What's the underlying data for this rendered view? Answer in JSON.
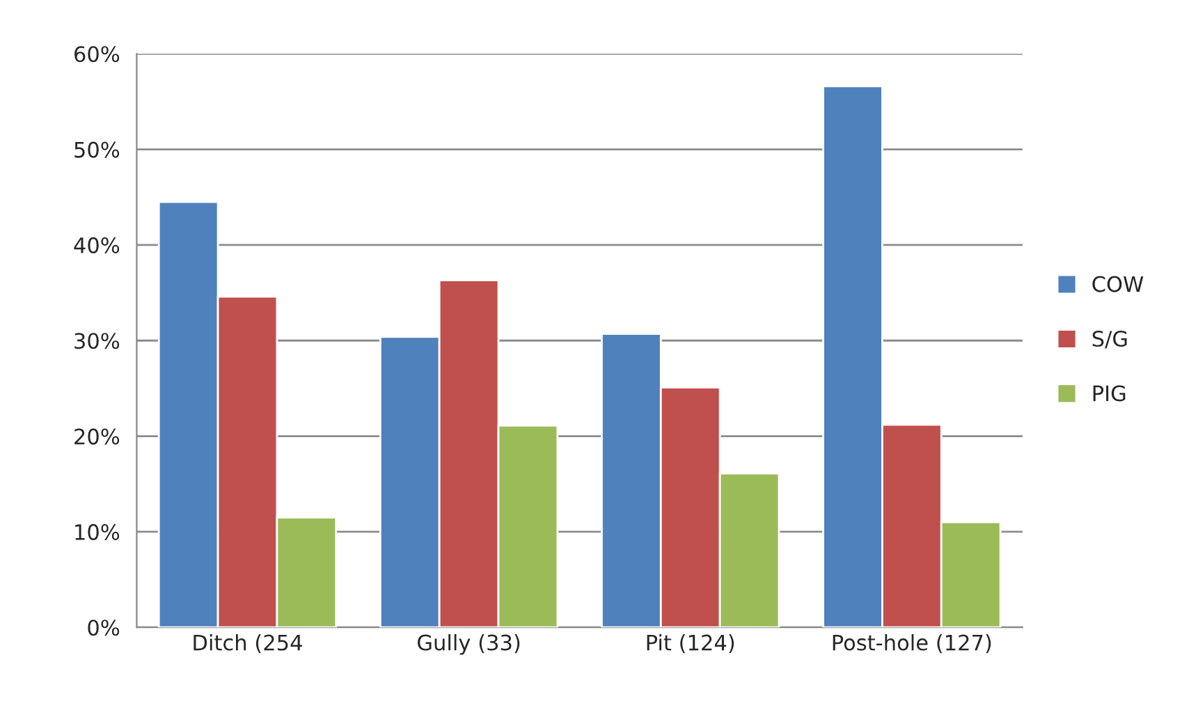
{
  "chart_data": {
    "type": "bar",
    "categories": [
      "Ditch (254",
      "Gully (33)",
      "Pit (124)",
      "Post-hole (127)"
    ],
    "series": [
      {
        "name": "COW",
        "color": "#4f81bd",
        "values": [
          44.5,
          30.4,
          30.7,
          56.6
        ]
      },
      {
        "name": "S/G",
        "color": "#c0504d",
        "values": [
          34.6,
          36.3,
          25.1,
          21.2
        ]
      },
      {
        "name": "PIG",
        "color": "#9bbb59",
        "values": [
          11.5,
          21.1,
          16.1,
          11.0
        ]
      }
    ],
    "ylim": [
      0,
      60
    ],
    "yticks": [
      {
        "value": 0,
        "label": "0%"
      },
      {
        "value": 10,
        "label": "10%"
      },
      {
        "value": 20,
        "label": "20%"
      },
      {
        "value": 30,
        "label": "30%"
      },
      {
        "value": 40,
        "label": "40%"
      },
      {
        "value": 50,
        "label": "50%"
      },
      {
        "value": 60,
        "label": "60%"
      }
    ],
    "grid": "y",
    "legend": "right"
  }
}
